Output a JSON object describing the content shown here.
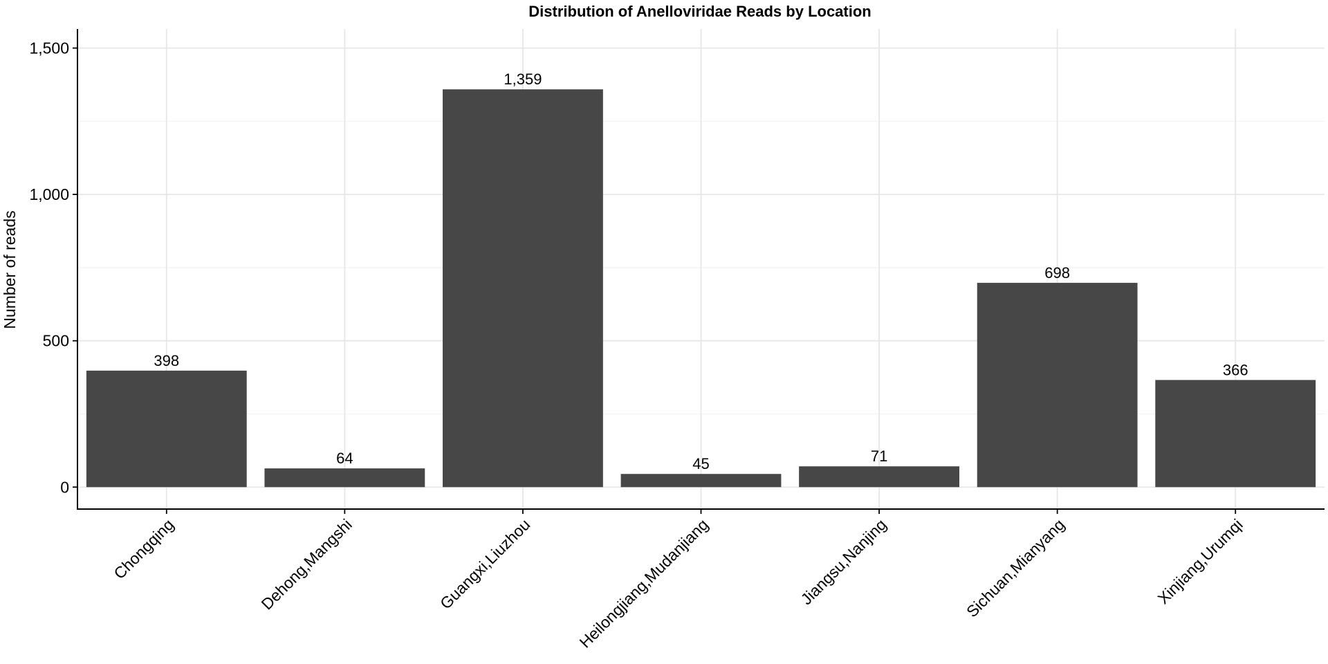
{
  "chart_data": {
    "type": "bar",
    "title": "Distribution of Anelloviridae Reads by Location",
    "xlabel": "",
    "ylabel": "Number of reads",
    "categories": [
      "Chongqing",
      "Dehong,Mangshi",
      "Guangxi,Liuzhou",
      "Heilongjiang,Mudanjiang",
      "Jiangsu,Nanjing",
      "Sichuan,Mianyang",
      "Xinjiang,Urumqi"
    ],
    "values": [
      398,
      64,
      1359,
      45,
      71,
      698,
      366
    ],
    "value_labels": [
      "398",
      "64",
      "1,359",
      "45",
      "71",
      "698",
      "366"
    ],
    "ylim": [
      -75,
      1565
    ],
    "yticks": [
      0,
      500,
      1000,
      1500
    ],
    "ytick_labels": [
      "0",
      "500",
      "1,000",
      "1,500"
    ],
    "grid": true,
    "bar_color": "#474747",
    "grid_color": "#e6e6e6"
  }
}
